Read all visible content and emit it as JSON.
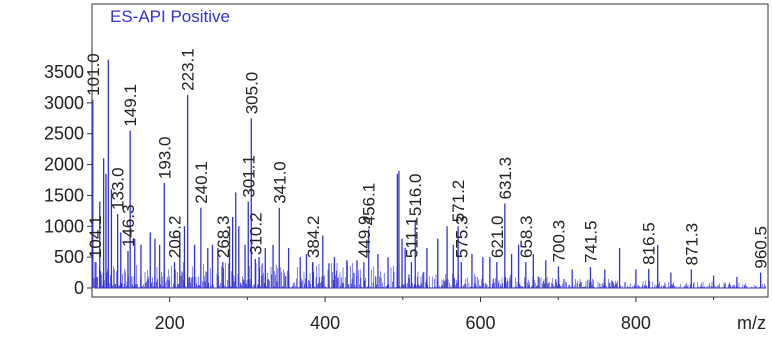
{
  "chart_data": {
    "type": "bar",
    "title": "ES-API Positive",
    "xlabel": "m/z",
    "ylabel": "",
    "xlim": [
      100,
      970
    ],
    "ylim": [
      0,
      3850
    ],
    "xticks": [
      200,
      400,
      600,
      800
    ],
    "yticks": [
      0,
      500,
      1000,
      1500,
      2000,
      2500,
      3000,
      3500
    ],
    "grid": false,
    "series_color": "#3333cc",
    "title_color": "#3333cc",
    "peak_labels": [
      {
        "x": 101.0,
        "y": 3050,
        "label": "101.0"
      },
      {
        "x": 104.1,
        "y": 420,
        "label": "104.1"
      },
      {
        "x": 133.0,
        "y": 1200,
        "label": "133.0"
      },
      {
        "x": 146.3,
        "y": 600,
        "label": "146.3"
      },
      {
        "x": 149.1,
        "y": 2550,
        "label": "149.1"
      },
      {
        "x": 193.0,
        "y": 1700,
        "label": "193.0"
      },
      {
        "x": 206.2,
        "y": 420,
        "label": "206.2"
      },
      {
        "x": 223.1,
        "y": 3130,
        "label": "223.1"
      },
      {
        "x": 240.1,
        "y": 1300,
        "label": "240.1"
      },
      {
        "x": 268.3,
        "y": 420,
        "label": "268.3"
      },
      {
        "x": 301.1,
        "y": 1400,
        "label": "301.1"
      },
      {
        "x": 305.0,
        "y": 2750,
        "label": "305.0"
      },
      {
        "x": 310.2,
        "y": 470,
        "label": "310.2"
      },
      {
        "x": 341.0,
        "y": 1300,
        "label": "341.0"
      },
      {
        "x": 384.2,
        "y": 420,
        "label": "384.2"
      },
      {
        "x": 449.9,
        "y": 420,
        "label": "449.9"
      },
      {
        "x": 456.1,
        "y": 950,
        "label": "456.1"
      },
      {
        "x": 511.1,
        "y": 420,
        "label": "511.1"
      },
      {
        "x": 516.0,
        "y": 1100,
        "label": "516.0"
      },
      {
        "x": 571.2,
        "y": 1000,
        "label": "571.2"
      },
      {
        "x": 575.3,
        "y": 420,
        "label": "575.3"
      },
      {
        "x": 621.0,
        "y": 420,
        "label": "621.0"
      },
      {
        "x": 631.3,
        "y": 1370,
        "label": "631.3"
      },
      {
        "x": 658.3,
        "y": 420,
        "label": "658.3"
      },
      {
        "x": 700.3,
        "y": 350,
        "label": "700.3"
      },
      {
        "x": 741.5,
        "y": 340,
        "label": "741.5"
      },
      {
        "x": 816.5,
        "y": 310,
        "label": "816.5"
      },
      {
        "x": 871.3,
        "y": 300,
        "label": "871.3"
      },
      {
        "x": 960.5,
        "y": 250,
        "label": "960.5"
      }
    ],
    "major_peaks": [
      [
        101.0,
        3050
      ],
      [
        104.1,
        420
      ],
      [
        110.0,
        1400
      ],
      [
        115.0,
        2100
      ],
      [
        118.0,
        1850
      ],
      [
        121.0,
        3700
      ],
      [
        125.0,
        1600
      ],
      [
        133.0,
        1200
      ],
      [
        137.0,
        900
      ],
      [
        146.3,
        600
      ],
      [
        149.1,
        2550
      ],
      [
        155.0,
        800
      ],
      [
        163.0,
        700
      ],
      [
        175.0,
        900
      ],
      [
        181.0,
        800
      ],
      [
        187.0,
        700
      ],
      [
        193.0,
        1700
      ],
      [
        206.2,
        420
      ],
      [
        213.0,
        900
      ],
      [
        219.0,
        1000
      ],
      [
        223.1,
        3130
      ],
      [
        232.0,
        700
      ],
      [
        240.1,
        1300
      ],
      [
        249.0,
        650
      ],
      [
        255.0,
        700
      ],
      [
        262.0,
        650
      ],
      [
        268.3,
        420
      ],
      [
        277.0,
        1000
      ],
      [
        281.0,
        1150
      ],
      [
        285.0,
        1550
      ],
      [
        289.0,
        1000
      ],
      [
        297.0,
        700
      ],
      [
        301.1,
        1400
      ],
      [
        305.0,
        2750
      ],
      [
        310.2,
        470
      ],
      [
        315.0,
        500
      ],
      [
        323.0,
        650
      ],
      [
        333.0,
        700
      ],
      [
        341.0,
        1300
      ],
      [
        353.0,
        650
      ],
      [
        368.0,
        500
      ],
      [
        376.0,
        550
      ],
      [
        384.2,
        420
      ],
      [
        397.0,
        850
      ],
      [
        405.0,
        400
      ],
      [
        412.0,
        500
      ],
      [
        428.0,
        450
      ],
      [
        441.0,
        450
      ],
      [
        449.9,
        420
      ],
      [
        456.1,
        950
      ],
      [
        468.0,
        550
      ],
      [
        481.0,
        500
      ],
      [
        493.0,
        1850
      ],
      [
        495.0,
        1900
      ],
      [
        499.0,
        800
      ],
      [
        503.0,
        650
      ],
      [
        511.1,
        420
      ],
      [
        516.0,
        1100
      ],
      [
        531.0,
        650
      ],
      [
        545.0,
        800
      ],
      [
        557.0,
        1000
      ],
      [
        565.0,
        700
      ],
      [
        571.2,
        1000
      ],
      [
        575.3,
        420
      ],
      [
        589.0,
        550
      ],
      [
        603.0,
        500
      ],
      [
        612.0,
        500
      ],
      [
        621.0,
        420
      ],
      [
        631.3,
        1370
      ],
      [
        640.0,
        550
      ],
      [
        649.0,
        700
      ],
      [
        658.3,
        420
      ],
      [
        668.0,
        550
      ],
      [
        684.0,
        450
      ],
      [
        700.3,
        350
      ],
      [
        718.0,
        300
      ],
      [
        741.5,
        340
      ],
      [
        760.0,
        300
      ],
      [
        779.0,
        650
      ],
      [
        800.0,
        300
      ],
      [
        816.5,
        310
      ],
      [
        828.0,
        700
      ],
      [
        845.0,
        250
      ],
      [
        871.3,
        300
      ],
      [
        900.0,
        200
      ],
      [
        930.0,
        180
      ],
      [
        960.5,
        250
      ]
    ]
  }
}
